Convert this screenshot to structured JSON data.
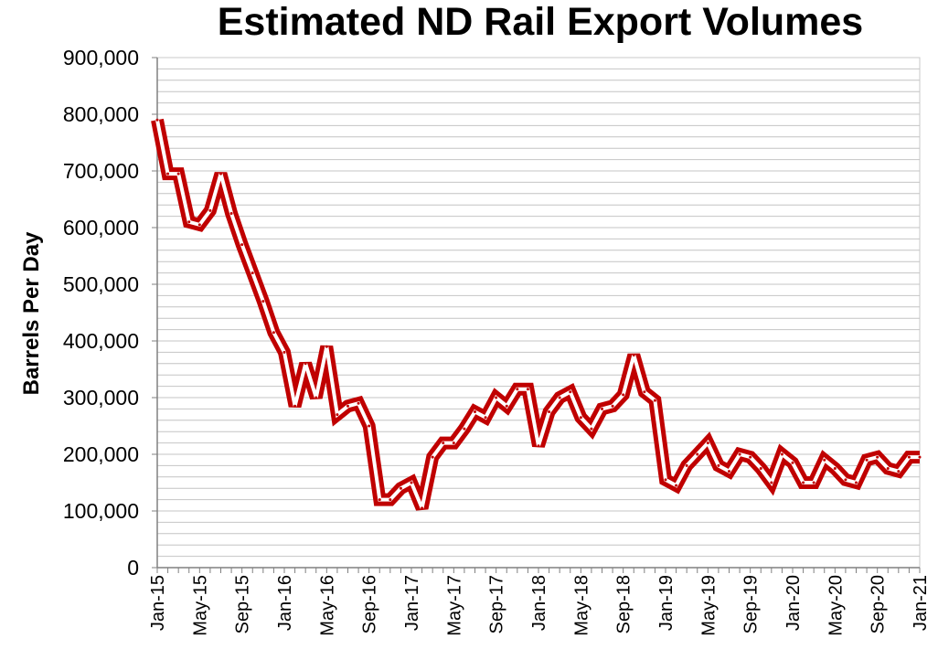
{
  "chart_data": {
    "type": "line",
    "title": "Estimated ND Rail Export Volumes",
    "xlabel": "",
    "ylabel": "Barrels Per Day",
    "ylim": [
      0,
      900000
    ],
    "yticks": [
      "0",
      "100,000",
      "200,000",
      "300,000",
      "400,000",
      "500,000",
      "600,000",
      "700,000",
      "800,000",
      "900,000"
    ],
    "xtick_labels": [
      "Jan-15",
      "May-15",
      "Sep-15",
      "Jan-16",
      "May-16",
      "Sep-16",
      "Jan-17",
      "May-17",
      "Sep-17",
      "Jan-18",
      "May-18",
      "Sep-18",
      "Jan-19",
      "May-19",
      "Sep-19",
      "Jan-20",
      "May-20",
      "Sep-20",
      "Jan-21"
    ],
    "grid": true,
    "legend": "none",
    "line_color": "#c00000",
    "series": [
      {
        "x": [
          "Jan-15",
          "Feb-15",
          "Mar-15",
          "Apr-15",
          "May-15",
          "Jun-15",
          "Jul-15",
          "Aug-15",
          "Sep-15",
          "Oct-15",
          "Nov-15",
          "Dec-15",
          "Jan-16",
          "Feb-16",
          "Mar-16",
          "Apr-16",
          "May-16",
          "Jun-16",
          "Jul-16",
          "Aug-16",
          "Sep-16",
          "Oct-16",
          "Nov-16",
          "Dec-16",
          "Jan-17",
          "Feb-17",
          "Mar-17",
          "Apr-17",
          "May-17",
          "Jun-17",
          "Jul-17",
          "Aug-17",
          "Sep-17",
          "Oct-17",
          "Nov-17",
          "Dec-17",
          "Jan-18",
          "Feb-18",
          "Mar-18",
          "Apr-18",
          "May-18",
          "Jun-18",
          "Jul-18",
          "Aug-18",
          "Sep-18",
          "Oct-18",
          "Nov-18",
          "Dec-18",
          "Jan-19",
          "Feb-19",
          "Mar-19",
          "Apr-19",
          "May-19",
          "Jun-19",
          "Jul-19",
          "Aug-19",
          "Sep-19",
          "Oct-19",
          "Nov-19",
          "Dec-19",
          "Jan-20",
          "Feb-20",
          "Mar-20",
          "Apr-20",
          "May-20",
          "Jun-20",
          "Jul-20",
          "Aug-20",
          "Sep-20",
          "Oct-20",
          "Nov-20",
          "Dec-20",
          "Jan-21"
        ],
        "values": [
          790000,
          695000,
          695000,
          610000,
          605000,
          630000,
          695000,
          625000,
          570000,
          520000,
          470000,
          415000,
          380000,
          285000,
          360000,
          300000,
          390000,
          270000,
          285000,
          290000,
          250000,
          120000,
          120000,
          140000,
          150000,
          105000,
          195000,
          220000,
          220000,
          245000,
          275000,
          265000,
          300000,
          285000,
          315000,
          315000,
          215000,
          275000,
          300000,
          310000,
          265000,
          245000,
          280000,
          285000,
          305000,
          375000,
          310000,
          295000,
          155000,
          145000,
          180000,
          200000,
          220000,
          180000,
          170000,
          200000,
          195000,
          175000,
          150000,
          200000,
          185000,
          150000,
          150000,
          190000,
          175000,
          155000,
          150000,
          190000,
          195000,
          175000,
          170000,
          195000,
          195000
        ]
      }
    ]
  }
}
